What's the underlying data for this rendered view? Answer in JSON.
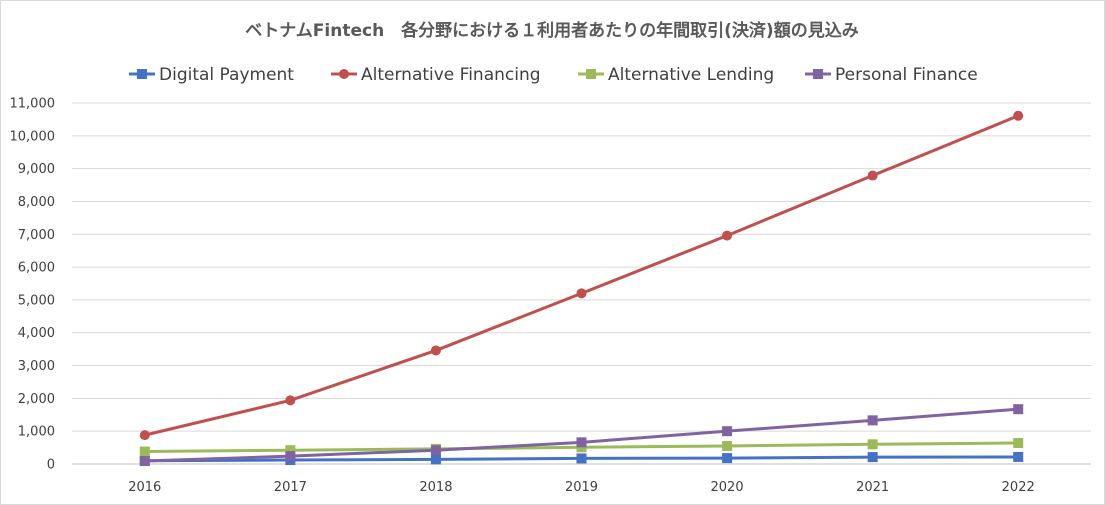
{
  "chart_data": {
    "type": "line",
    "title": "ベトナムFintech　各分野における１利用者あたりの年間取引(決済)額の見込み",
    "xlabel": "",
    "ylabel": "",
    "categories": [
      "2016",
      "2017",
      "2018",
      "2019",
      "2020",
      "2021",
      "2022"
    ],
    "ylim": [
      0,
      11000
    ],
    "ytick_step": 1000,
    "y_tick_labels": [
      "0",
      "1,000",
      "2,000",
      "3,000",
      "4,000",
      "5,000",
      "6,000",
      "7,000",
      "8,000",
      "9,000",
      "10,000",
      "11,000"
    ],
    "grid": true,
    "legend_position": "top",
    "series": [
      {
        "name": "Digital Payment",
        "color": "#4472c4",
        "marker": "square",
        "values": [
          100,
          120,
          140,
          170,
          180,
          210,
          215
        ]
      },
      {
        "name": "Alternative Financing",
        "color": "#c0504d",
        "marker": "circle",
        "values": [
          880,
          1940,
          3460,
          5200,
          6960,
          8790,
          10610
        ]
      },
      {
        "name": "Alternative Lending",
        "color": "#9bbb59",
        "marker": "square",
        "values": [
          380,
          420,
          460,
          510,
          550,
          600,
          640
        ]
      },
      {
        "name": "Personal Finance",
        "color": "#8064a2",
        "marker": "square",
        "values": [
          90,
          240,
          420,
          660,
          1000,
          1330,
          1670
        ]
      }
    ]
  }
}
